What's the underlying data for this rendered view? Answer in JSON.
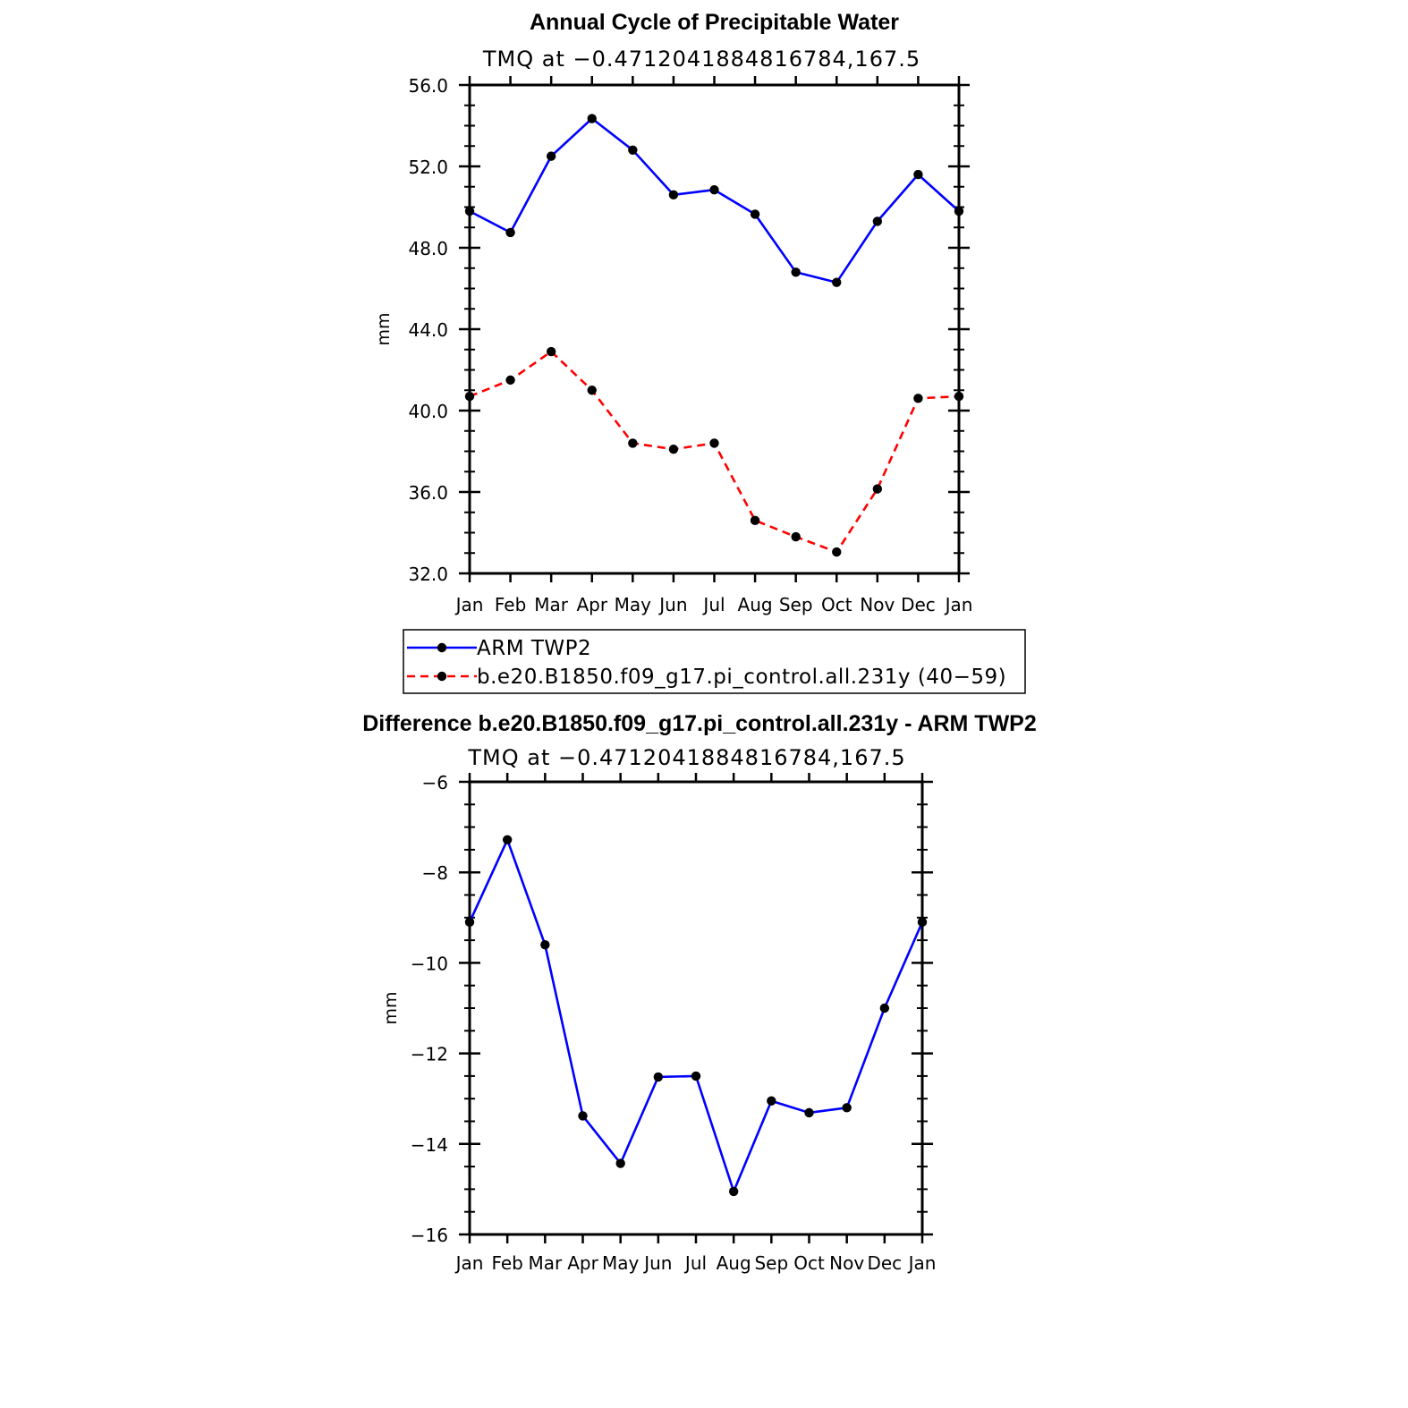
{
  "chart_data": [
    {
      "type": "line",
      "title": "Annual Cycle of Precipitable Water",
      "subtitle": "TMQ at −0.4712041884816784,167.5",
      "xlabel": "",
      "ylabel": "mm",
      "categories": [
        "Jan",
        "Feb",
        "Mar",
        "Apr",
        "May",
        "Jun",
        "Jul",
        "Aug",
        "Sep",
        "Oct",
        "Nov",
        "Dec",
        "Jan"
      ],
      "yticks": [
        "56.0",
        "52.0",
        "48.0",
        "44.0",
        "40.0",
        "36.0",
        "32.0"
      ],
      "ylim": [
        32,
        56
      ],
      "grid": false,
      "legend_position": "bottom",
      "series": [
        {
          "name": "ARM TWP2",
          "color": "#0000ff",
          "style": "solid",
          "values": [
            49.8,
            48.75,
            52.5,
            54.35,
            52.8,
            50.6,
            50.85,
            49.65,
            46.8,
            46.3,
            49.3,
            51.6,
            49.8
          ]
        },
        {
          "name": "b.e20.B1850.f09_g17.pi_control.all.231y (40−59)",
          "color": "#ff0000",
          "style": "dashed",
          "values": [
            40.7,
            41.5,
            42.9,
            41.0,
            38.4,
            38.1,
            38.4,
            34.6,
            33.8,
            33.05,
            36.15,
            40.6,
            40.7
          ]
        }
      ]
    },
    {
      "type": "line",
      "title": "Difference b.e20.B1850.f09_g17.pi_control.all.231y - ARM TWP2",
      "subtitle": "TMQ at −0.4712041884816784,167.5",
      "xlabel": "",
      "ylabel": "mm",
      "categories": [
        "Jan",
        "Feb",
        "Mar",
        "Apr",
        "May",
        "Jun",
        "Jul",
        "Aug",
        "Sep",
        "Oct",
        "Nov",
        "Dec",
        "Jan"
      ],
      "yticks": [
        "−6",
        "−8",
        "−10",
        "−12",
        "−14",
        "−16"
      ],
      "ylim": [
        -16,
        -6
      ],
      "grid": false,
      "series": [
        {
          "name": "Difference",
          "color": "#0000ff",
          "style": "solid",
          "values": [
            -9.1,
            -7.28,
            -9.6,
            -13.38,
            -14.43,
            -12.52,
            -12.5,
            -15.05,
            -13.05,
            -13.31,
            -13.2,
            -11.0,
            -9.1
          ]
        }
      ]
    }
  ]
}
